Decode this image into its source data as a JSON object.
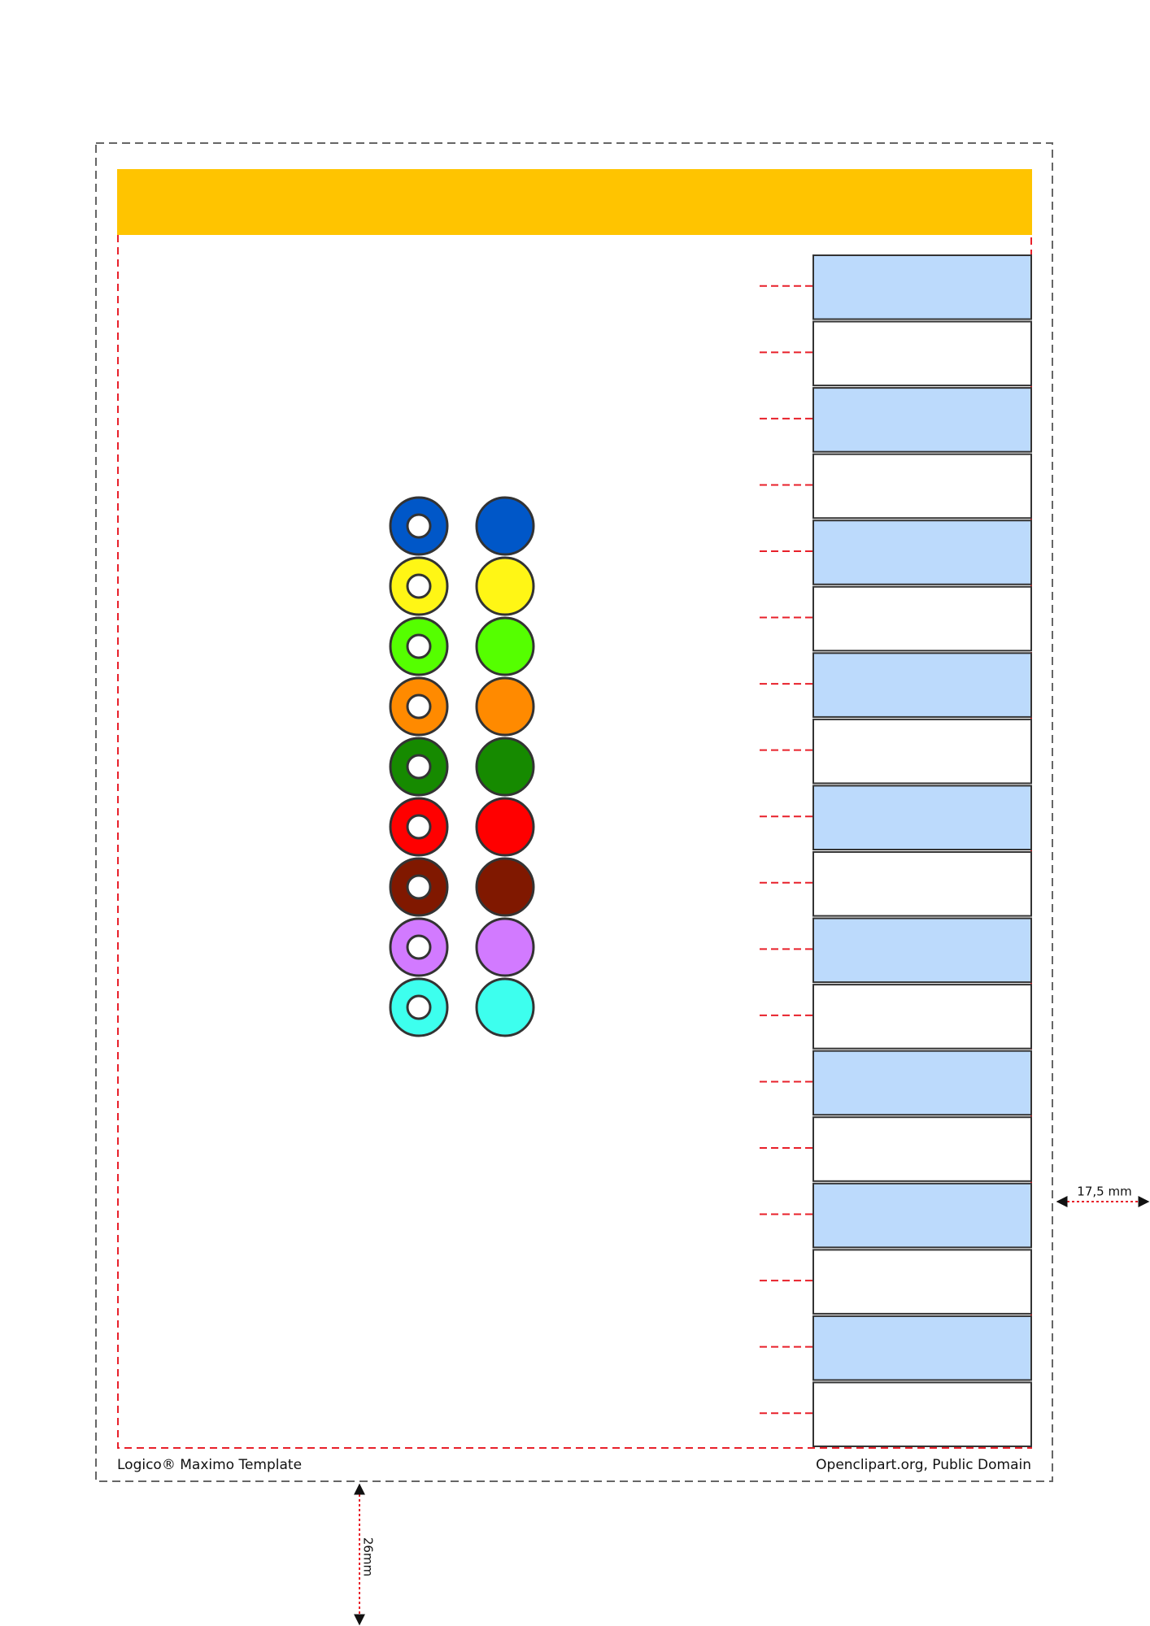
{
  "footer": {
    "left": "Logico® Maximo Template",
    "right": "Openclipart.org, Public Domain"
  },
  "dimensions": {
    "right_margin": "17,5 mm",
    "bottom_margin": "26mm"
  }
}
